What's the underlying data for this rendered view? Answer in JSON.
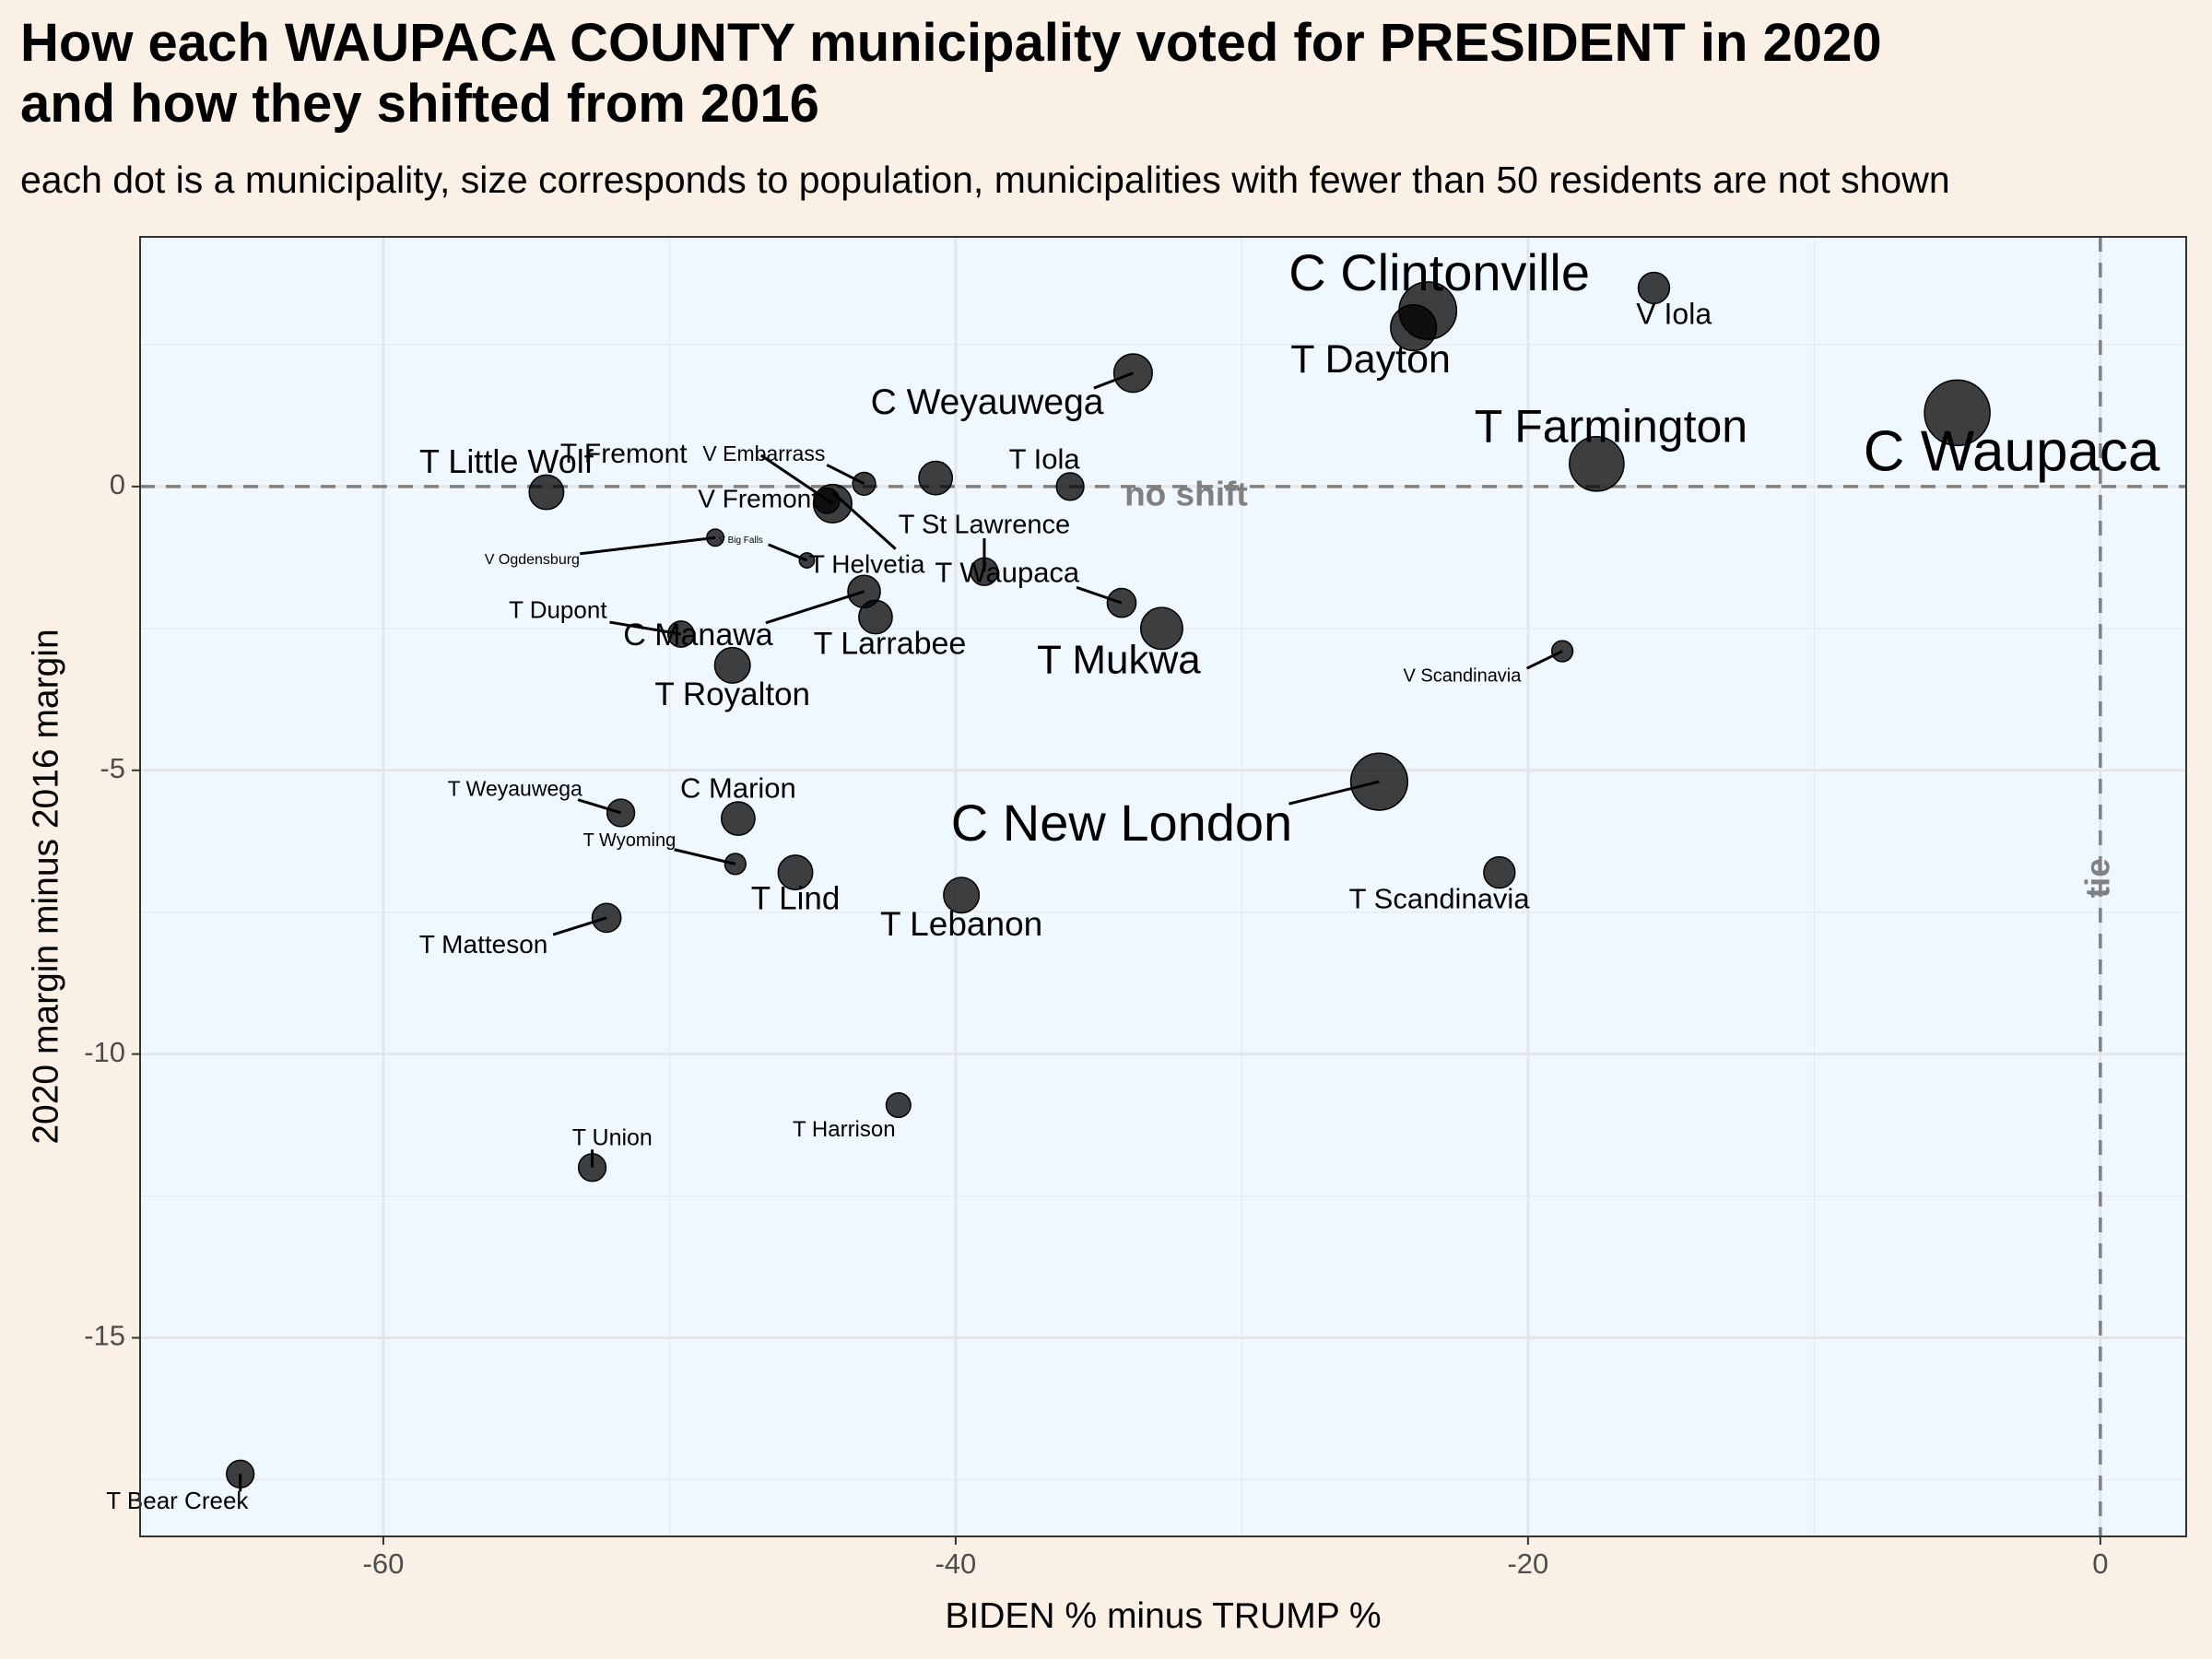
{
  "title_lines": [
    "How each WAUPACA COUNTY municipality voted for PRESIDENT in 2020",
    "and how they shifted from 2016"
  ],
  "subtitle": "each dot is a municipality, size corresponds to population, municipalities with fewer than 50 residents are not shown",
  "chart_data": {
    "type": "scatter",
    "xlabel": "BIDEN % minus TRUMP %",
    "ylabel": "2020 margin minus 2016 margin",
    "xlim": [
      -68.5,
      3
    ],
    "ylim": [
      -18.5,
      4.4
    ],
    "x_ticks": [
      -60,
      -40,
      -20,
      0
    ],
    "x_tick_labels": [
      "-60",
      "-40",
      "-20",
      "0"
    ],
    "y_ticks": [
      0,
      -5,
      -10,
      -15
    ],
    "y_tick_labels": [
      "0",
      "-5",
      "-10",
      "-15"
    ],
    "grid": true,
    "reference_lines": [
      {
        "axis": "y",
        "value": 0,
        "label": "no shift"
      },
      {
        "axis": "x",
        "value": 0,
        "label": "tie"
      }
    ],
    "colors": {
      "panel": "#f0f8ff",
      "background": "#fbf0e6",
      "points": "#000000",
      "reference": "#808080",
      "grid": "#e8ebee"
    },
    "points": [
      {
        "name": "C Clintonville",
        "x": -23.5,
        "y": 3.1,
        "size": 4500,
        "label_x": -23.1,
        "label_y": 3.7,
        "fs": 56
      },
      {
        "name": "V Iola",
        "x": -15.6,
        "y": 3.5,
        "size": 1100,
        "label_x": -14.9,
        "label_y": 3.0,
        "fs": 32
      },
      {
        "name": "T Dayton",
        "x": -24.0,
        "y": 2.8,
        "size": 2700,
        "label_x": -25.5,
        "label_y": 2.2,
        "fs": 43
      },
      {
        "name": "C Weyauwega",
        "x": -33.8,
        "y": 2.0,
        "size": 1800,
        "label_x": -38.9,
        "label_y": 1.45,
        "fs": 39
      },
      {
        "name": "T Farmington",
        "x": -17.6,
        "y": 0.4,
        "size": 4000,
        "label_x": -17.1,
        "label_y": 1.0,
        "fs": 50
      },
      {
        "name": "C Waupaca",
        "x": -5.0,
        "y": 1.3,
        "size": 6000,
        "label_x": -3.1,
        "label_y": 0.55,
        "fs": 62
      },
      {
        "name": "T Little Wolf",
        "x": -54.3,
        "y": -0.1,
        "size": 1400,
        "label_x": -55.7,
        "label_y": 0.4,
        "fs": 36
      },
      {
        "name": "T Fremont",
        "x": -44.3,
        "y": -0.3,
        "size": 1800,
        "label_x": -51.6,
        "label_y": 0.55,
        "fs": 30,
        "lx1": -44.3,
        "ly1": -0.3,
        "lx2": -46.8,
        "ly2": 0.55
      },
      {
        "name": "V Embarrass",
        "x": -43.2,
        "y": 0.05,
        "size": 500,
        "label_x": -46.7,
        "label_y": 0.55,
        "fs": 23
      },
      {
        "name": "V Fremont",
        "x": -44.5,
        "y": -0.25,
        "size": 650,
        "label_x": -46.9,
        "label_y": -0.25,
        "fs": 28
      },
      {
        "name": "T Helvetia",
        "x": -40.7,
        "y": 0.15,
        "size": 1300,
        "label_x": -43.1,
        "label_y": -1.4,
        "fs": 28,
        "lx1": -44.3,
        "ly1": -0.1,
        "lx2": -42.1,
        "ly2": -1.1
      },
      {
        "name": "T Iola",
        "x": -36.0,
        "y": 0.0,
        "size": 800,
        "label_x": -36.9,
        "label_y": 0.45,
        "fs": 31
      },
      {
        "name": "V Ogdensburg",
        "x": -48.4,
        "y": -0.9,
        "size": 220,
        "label_x": -54.8,
        "label_y": -1.3,
        "fs": 16
      },
      {
        "name": "V Big Falls",
        "x": -45.2,
        "y": -1.3,
        "size": 150,
        "label_x": -47.5,
        "label_y": -0.95,
        "fs": 10
      },
      {
        "name": "T St Lawrence",
        "x": -39.0,
        "y": -1.5,
        "size": 800,
        "label_x": -39.0,
        "label_y": -0.7,
        "fs": 29
      },
      {
        "name": "T Waupaca",
        "x": -34.2,
        "y": -2.05,
        "size": 900,
        "label_x": -38.2,
        "label_y": -1.55,
        "fs": 31
      },
      {
        "name": "T Mukwa",
        "x": -32.8,
        "y": -2.5,
        "size": 2200,
        "label_x": -34.3,
        "label_y": -3.1,
        "fs": 44
      },
      {
        "name": "T Dupont",
        "x": -49.6,
        "y": -2.6,
        "size": 700,
        "label_x": -53.9,
        "label_y": -2.2,
        "fs": 26
      },
      {
        "name": "C Manawa",
        "x": -43.2,
        "y": -1.85,
        "size": 1200,
        "label_x": -49.0,
        "label_y": -2.65,
        "fs": 34
      },
      {
        "name": "T Larrabee",
        "x": -42.8,
        "y": -2.3,
        "size": 1300,
        "label_x": -42.3,
        "label_y": -2.8,
        "fs": 34
      },
      {
        "name": "T Royalton",
        "x": -47.8,
        "y": -3.15,
        "size": 1500,
        "label_x": -47.8,
        "label_y": -3.7,
        "fs": 35
      },
      {
        "name": "V Scandinavia",
        "x": -18.8,
        "y": -2.9,
        "size": 400,
        "label_x": -22.3,
        "label_y": -3.35,
        "fs": 20
      },
      {
        "name": "C New London",
        "x": -25.2,
        "y": -5.2,
        "size": 4400,
        "label_x": -34.2,
        "label_y": -6.0,
        "fs": 56
      },
      {
        "name": "T Weyauwega",
        "x": -51.7,
        "y": -5.75,
        "size": 800,
        "label_x": -55.4,
        "label_y": -5.35,
        "fs": 23
      },
      {
        "name": "C Marion",
        "x": -47.6,
        "y": -5.85,
        "size": 1300,
        "label_x": -47.6,
        "label_y": -5.35,
        "fs": 31
      },
      {
        "name": "T Wyoming",
        "x": -47.7,
        "y": -6.65,
        "size": 400,
        "label_x": -51.4,
        "label_y": -6.25,
        "fs": 20
      },
      {
        "name": "T Lind",
        "x": -45.6,
        "y": -6.8,
        "size": 1400,
        "label_x": -45.6,
        "label_y": -7.3,
        "fs": 35
      },
      {
        "name": "T Lebanon",
        "x": -39.8,
        "y": -7.2,
        "size": 1500,
        "label_x": -39.8,
        "label_y": -7.75,
        "fs": 37
      },
      {
        "name": "T Scandinavia",
        "x": -21.0,
        "y": -6.8,
        "size": 1100,
        "label_x": -23.1,
        "label_y": -7.3,
        "fs": 31
      },
      {
        "name": "T Matteson",
        "x": -52.2,
        "y": -7.6,
        "size": 900,
        "label_x": -56.5,
        "label_y": -8.1,
        "fs": 28
      },
      {
        "name": "T Harrison",
        "x": -42.0,
        "y": -10.9,
        "size": 600,
        "label_x": -43.9,
        "label_y": -11.35,
        "fs": 24
      },
      {
        "name": "T Union",
        "x": -52.7,
        "y": -12.0,
        "size": 800,
        "label_x": -52.0,
        "label_y": -11.5,
        "fs": 25
      },
      {
        "name": "T Bear Creek",
        "x": -65.0,
        "y": -17.4,
        "size": 800,
        "label_x": -67.2,
        "label_y": -17.9,
        "fs": 26
      }
    ]
  }
}
